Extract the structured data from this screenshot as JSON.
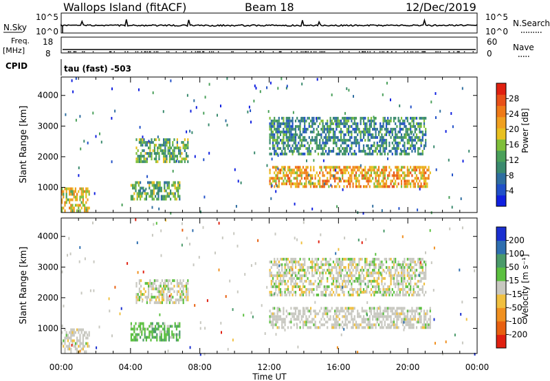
{
  "header": {
    "station": "Wallops Island (fitACF)",
    "beam": "Beam 18",
    "date": "12/Dec/2019"
  },
  "top_panels": {
    "nsky_label": "N.Sky",
    "nsky_ticks": [
      "10^5",
      "10^0"
    ],
    "nsearch_label": "N.Search",
    "nsearch_ticks": [
      "10^5",
      "10^0"
    ],
    "freq_label_1": "Freq.",
    "freq_label_2": "[MHz]",
    "freq_ticks": [
      "18",
      "8"
    ],
    "nave_label": "Nave",
    "nave_ticks": [
      "60",
      "0"
    ],
    "cpid_label": "CPID",
    "cpid_value": "tau (fast) -503"
  },
  "colors": {
    "power_scale": [
      "#1020e0",
      "#2050c8",
      "#2f6ea0",
      "#3a8a6e",
      "#4aa05a",
      "#7fbf3a",
      "#e8c020",
      "#f0a020",
      "#ef7a18",
      "#e85018",
      "#e02010"
    ],
    "velocity_scale": [
      "#1a2fd0",
      "#2f6fb0",
      "#4a9a6a",
      "#5cc040",
      "#c8c8c0",
      "#f0c040",
      "#f09020",
      "#e86010",
      "#e02010"
    ]
  },
  "chart_data": [
    {
      "type": "heatmap",
      "name": "power",
      "xlabel": "",
      "ylabel": "Slant Range [km]",
      "xlim": [
        "00:00",
        "00:00"
      ],
      "ylim": [
        180,
        4600
      ],
      "x_ticks": [
        "00:00",
        "04:00",
        "08:00",
        "12:00",
        "16:00",
        "20:00",
        "00:00"
      ],
      "y_ticks": [
        1000,
        2000,
        3000,
        4000
      ],
      "colorbar": {
        "label": "Power [dB]",
        "ticks": [
          4,
          8,
          12,
          16,
          20,
          24,
          28
        ],
        "range": [
          0,
          32
        ]
      },
      "regions": [
        {
          "t": [
            0.0,
            1.6
          ],
          "range": [
            200,
            1000
          ],
          "value": 20
        },
        {
          "t": [
            4.0,
            6.8
          ],
          "range": [
            650,
            1200
          ],
          "value": 12
        },
        {
          "t": [
            4.3,
            7.3
          ],
          "range": [
            1800,
            2600
          ],
          "value": 12
        },
        {
          "t": [
            12.0,
            21.3
          ],
          "range": [
            1000,
            1700
          ],
          "value": 22
        },
        {
          "t": [
            12.0,
            21.0
          ],
          "range": [
            2100,
            3300
          ],
          "value": 10
        }
      ]
    },
    {
      "type": "heatmap",
      "name": "velocity",
      "xlabel": "Time UT",
      "ylabel": "Slant Range [km]",
      "xlim": [
        "00:00",
        "00:00"
      ],
      "ylim": [
        180,
        4600
      ],
      "x_ticks": [
        "00:00",
        "04:00",
        "08:00",
        "12:00",
        "16:00",
        "20:00",
        "00:00"
      ],
      "y_ticks": [
        1000,
        2000,
        3000,
        4000
      ],
      "colorbar": {
        "label": "Velocity [m s⁻¹]",
        "ticks": [
          200,
          100,
          50,
          15,
          -15,
          -50,
          -100,
          -200
        ]
      },
      "regions": [
        {
          "t": [
            0.0,
            1.6
          ],
          "range": [
            200,
            1000
          ],
          "value": 0
        },
        {
          "t": [
            4.0,
            6.8
          ],
          "range": [
            650,
            1200
          ],
          "value": 40
        },
        {
          "t": [
            4.3,
            7.3
          ],
          "range": [
            1800,
            2600
          ],
          "value": 5
        },
        {
          "t": [
            12.0,
            21.3
          ],
          "range": [
            1000,
            1700
          ],
          "value": 0
        },
        {
          "t": [
            12.0,
            21.0
          ],
          "range": [
            2100,
            3300
          ],
          "value": 10
        }
      ]
    }
  ],
  "time_axis": {
    "ticks": [
      "00:00",
      "04:00",
      "08:00",
      "12:00",
      "16:00",
      "20:00",
      "00:00"
    ],
    "label": "Time UT"
  }
}
